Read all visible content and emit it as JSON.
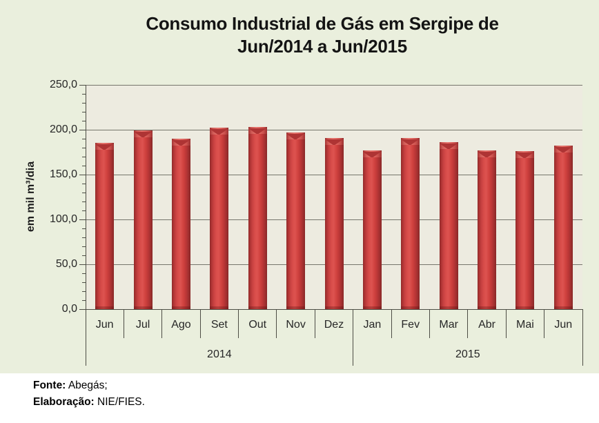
{
  "title": {
    "line1": "Consumo Industrial de Gás em Sergipe de",
    "line2": "Jun/2014 a Jun/2015"
  },
  "y_axis": {
    "title": "em mil m³/dia",
    "tick_values": [
      0,
      50,
      100,
      150,
      200,
      250
    ],
    "tick_labels": [
      "0,0",
      "50,0",
      "100,0",
      "150,0",
      "200,0",
      "250,0"
    ],
    "minor_step": 10
  },
  "chart_data": {
    "type": "bar",
    "title": "Consumo Industrial de Gás em Sergipe de Jun/2014 a Jun/2015",
    "xlabel": "",
    "ylabel": "em mil m³/dia",
    "ylim": [
      0,
      250
    ],
    "grid": true,
    "legend": false,
    "categories": [
      "Jun",
      "Jul",
      "Ago",
      "Set",
      "Out",
      "Nov",
      "Dez",
      "Jan",
      "Fev",
      "Mar",
      "Abr",
      "Mai",
      "Jun"
    ],
    "values": [
      185,
      199,
      190,
      202,
      203,
      197,
      191,
      177,
      191,
      186,
      177,
      176,
      182
    ],
    "groups": [
      {
        "label": "2014",
        "span": 7
      },
      {
        "label": "2015",
        "span": 6
      }
    ]
  },
  "footer": {
    "source_label": "Fonte:",
    "source_value": "Abegás;",
    "elaboration_label": "Elaboração:",
    "elaboration_value": "NIE/FIES."
  },
  "colors": {
    "background": "#eaefdd",
    "plot_background": "#edebe0",
    "gridline": "#75756b",
    "axis": "#4c4c44",
    "bar_main": "#c93c3b",
    "bar_highlight": "#dd5350",
    "bar_edge": "#8e2a2a",
    "bar_cap_shadow": "#ae3434",
    "text": "#262626"
  }
}
